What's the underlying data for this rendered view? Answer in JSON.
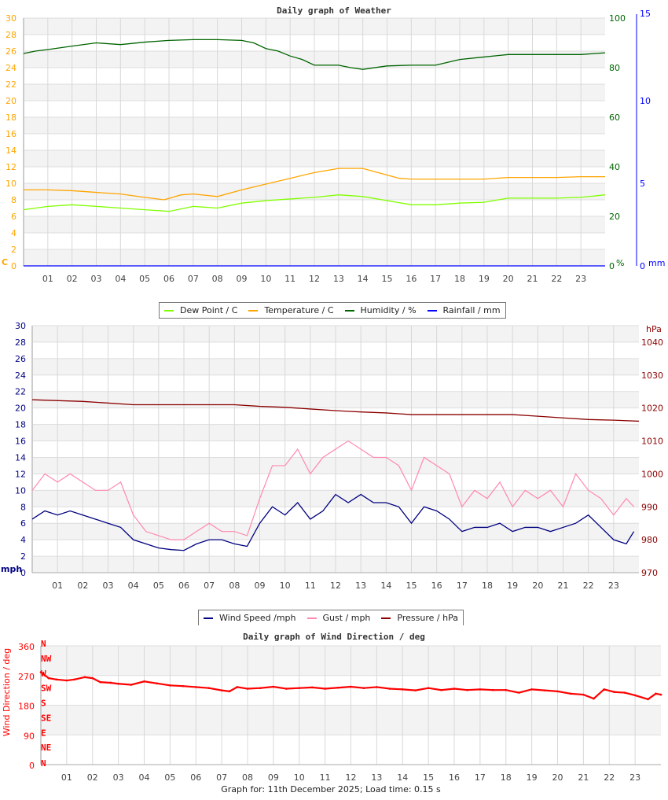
{
  "chart_data": [
    {
      "type": "line",
      "title": "Daily graph of Weather",
      "x_ticks": [
        "01",
        "02",
        "03",
        "04",
        "05",
        "06",
        "07",
        "08",
        "09",
        "10",
        "11",
        "12",
        "13",
        "14",
        "15",
        "16",
        "17",
        "18",
        "19",
        "20",
        "21",
        "22",
        "23"
      ],
      "x_unit": "hour",
      "xlim": [
        0,
        24
      ],
      "axes": {
        "left": {
          "label": "C",
          "ylim": [
            0,
            30
          ],
          "ticks": [
            0,
            2,
            4,
            6,
            8,
            10,
            12,
            14,
            16,
            18,
            20,
            22,
            24,
            26,
            28,
            30
          ],
          "color": "#ffa500"
        },
        "right1": {
          "label": "%",
          "ylim": [
            0,
            100
          ],
          "ticks": [
            0,
            20,
            40,
            60,
            80,
            100
          ],
          "color": "#006400"
        },
        "right2": {
          "label": "mm",
          "ylim": [
            0,
            15
          ],
          "ticks": [
            0,
            5,
            10,
            15
          ],
          "color": "#0000ff"
        }
      },
      "grid": true,
      "legend_position": "bottom",
      "series": [
        {
          "name": "Dew Point / C",
          "axis": "left",
          "color": "#80ff00",
          "x": [
            0,
            1,
            2,
            3,
            4,
            5,
            6,
            7,
            8,
            9,
            10,
            11,
            12,
            13,
            14,
            15,
            16,
            17,
            18,
            19,
            20,
            21,
            22,
            23,
            24
          ],
          "y": [
            6.8,
            7.2,
            7.4,
            7.2,
            7.0,
            6.8,
            6.6,
            7.2,
            7.0,
            7.6,
            7.9,
            8.1,
            8.3,
            8.6,
            8.4,
            7.9,
            7.4,
            7.4,
            7.6,
            7.7,
            8.2,
            8.2,
            8.2,
            8.3,
            8.6
          ]
        },
        {
          "name": "Temperature / C",
          "axis": "left",
          "color": "#ffa500",
          "x": [
            0,
            1,
            2,
            3,
            4,
            5,
            5.8,
            6.5,
            7,
            8,
            9,
            10,
            11,
            12,
            13,
            14,
            15,
            15.5,
            16,
            17,
            18,
            19,
            20,
            21,
            22,
            23,
            24
          ],
          "y": [
            9.2,
            9.2,
            9.1,
            8.9,
            8.7,
            8.3,
            8.0,
            8.6,
            8.7,
            8.4,
            9.2,
            9.9,
            10.6,
            11.3,
            11.8,
            11.8,
            11.0,
            10.6,
            10.5,
            10.5,
            10.5,
            10.5,
            10.7,
            10.7,
            10.7,
            10.8,
            10.8
          ]
        },
        {
          "name": "Humidity / %",
          "axis": "right1",
          "color": "#006400",
          "x": [
            0,
            0.5,
            1,
            2,
            3,
            4,
            5,
            6,
            7,
            8,
            9,
            9.5,
            10,
            10.5,
            11,
            11.5,
            12,
            13,
            13.5,
            14,
            15,
            16,
            17,
            18,
            19,
            20,
            21,
            22,
            23,
            24
          ],
          "y": [
            85.7,
            86.7,
            87.3,
            88.7,
            90,
            89.3,
            90.3,
            91,
            91.3,
            91.3,
            91,
            90,
            87.7,
            86.7,
            84.7,
            83.3,
            81,
            81,
            80,
            79.3,
            80.7,
            81,
            81,
            83.3,
            84.3,
            85.3,
            85.3,
            85.3,
            85.3,
            86
          ]
        },
        {
          "name": "Rainfall / mm",
          "axis": "right2",
          "color": "#0000ff",
          "x": [
            0,
            24
          ],
          "y": [
            0,
            0
          ]
        }
      ]
    },
    {
      "type": "line",
      "title": "",
      "x_ticks": [
        "01",
        "02",
        "03",
        "04",
        "05",
        "06",
        "07",
        "08",
        "09",
        "10",
        "11",
        "12",
        "13",
        "14",
        "15",
        "16",
        "17",
        "18",
        "19",
        "20",
        "21",
        "22",
        "23"
      ],
      "x_unit": "hour",
      "xlim": [
        0,
        24
      ],
      "axes": {
        "left": {
          "label": "mph",
          "ylim": [
            0,
            30
          ],
          "ticks": [
            0,
            2,
            4,
            6,
            8,
            10,
            12,
            14,
            16,
            18,
            20,
            22,
            24,
            26,
            28,
            30
          ],
          "color": "#000080"
        },
        "right": {
          "label": "hPa",
          "ylim": [
            970,
            1045
          ],
          "ticks": [
            970,
            980,
            990,
            1000,
            1010,
            1020,
            1030,
            1040
          ],
          "color": "#8b0000"
        }
      },
      "grid": true,
      "legend_position": "bottom",
      "series": [
        {
          "name": "Wind Speed /mph",
          "axis": "left",
          "color": "#000080",
          "x": [
            0,
            0.5,
            1,
            1.5,
            2,
            2.5,
            3,
            3.5,
            4,
            4.5,
            5,
            5.5,
            6,
            6.5,
            7,
            7.5,
            8,
            8.5,
            9,
            9.5,
            10,
            10.5,
            11,
            11.5,
            12,
            12.5,
            13,
            13.5,
            14,
            14.5,
            15,
            15.5,
            16,
            16.5,
            17,
            17.5,
            18,
            18.5,
            19,
            19.5,
            20,
            20.5,
            21,
            21.5,
            22,
            22.5,
            23,
            23.5,
            23.8
          ],
          "y": [
            6.5,
            7.5,
            7,
            7.5,
            7,
            6.5,
            6,
            5.5,
            4,
            3.5,
            3,
            2.8,
            2.7,
            3.5,
            4,
            4,
            3.5,
            3.2,
            6,
            8,
            7,
            8.5,
            6.5,
            7.5,
            9.5,
            8.5,
            9.5,
            8.5,
            8.5,
            8,
            6,
            8,
            7.5,
            6.5,
            5,
            5.5,
            5.5,
            6,
            5,
            5.5,
            5.5,
            5,
            5.5,
            6,
            7,
            5.5,
            4,
            3.5,
            5
          ]
        },
        {
          "name": "Gust / mph",
          "axis": "left",
          "color": "#ff88b0",
          "x": [
            0,
            0.5,
            1,
            1.5,
            2,
            2.5,
            3,
            3.5,
            4,
            4.5,
            5,
            5.5,
            6,
            6.5,
            7,
            7.5,
            8,
            8.5,
            9,
            9.5,
            10,
            10.5,
            11,
            11.5,
            12,
            12.5,
            13,
            13.5,
            14,
            14.5,
            15,
            15.5,
            16,
            16.5,
            17,
            17.5,
            18,
            18.5,
            19,
            19.5,
            20,
            20.5,
            21,
            21.5,
            22,
            22.5,
            23,
            23.5,
            23.8
          ],
          "y": [
            10,
            12,
            11,
            12,
            11,
            10,
            10,
            11,
            7,
            5,
            4.5,
            4,
            4,
            5,
            6,
            5,
            5,
            4.5,
            9,
            13,
            13,
            15,
            12,
            14,
            15,
            16,
            15,
            14,
            14,
            13,
            10,
            14,
            13,
            12,
            8,
            10,
            9,
            11,
            8,
            10,
            9,
            10,
            8,
            12,
            10,
            9,
            7,
            9,
            8
          ]
        },
        {
          "name": "Pressure / hPa",
          "axis": "right",
          "color": "#8b0000",
          "x": [
            0,
            2,
            4,
            6,
            8,
            9,
            10,
            11,
            12,
            12.5,
            13,
            14,
            15,
            16,
            17,
            18,
            19,
            20,
            21,
            22,
            23,
            24
          ],
          "y": [
            1022.5,
            1022,
            1021,
            1021,
            1021,
            1020.5,
            1020.2,
            1019.7,
            1019.2,
            1019,
            1018.8,
            1018.5,
            1018,
            1018,
            1018,
            1018,
            1018,
            1017.5,
            1017,
            1016.5,
            1016.3,
            1016
          ]
        }
      ]
    },
    {
      "type": "scatter",
      "title": "Daily graph of Wind Direction / deg",
      "ylabel": "Wind Direction / deg",
      "x_ticks": [
        "01",
        "02",
        "03",
        "04",
        "05",
        "06",
        "07",
        "08",
        "09",
        "10",
        "11",
        "12",
        "13",
        "14",
        "15",
        "16",
        "17",
        "18",
        "19",
        "20",
        "21",
        "22",
        "23"
      ],
      "x_unit": "hour",
      "xlim": [
        0,
        24
      ],
      "ylim": [
        0,
        360
      ],
      "y_ticks": [
        0,
        90,
        180,
        270,
        360
      ],
      "compass_labels": [
        "N",
        "NE",
        "E",
        "SE",
        "S",
        "SW",
        "W",
        "NW",
        "N"
      ],
      "color": "#ff0000",
      "grid": true,
      "series": [
        {
          "name": "",
          "x": [
            0,
            0.3,
            0.6,
            1,
            1.3,
            1.7,
            2,
            2.3,
            2.7,
            3,
            3.5,
            4,
            4.5,
            5,
            5.5,
            6,
            6.5,
            7,
            7.3,
            7.6,
            8,
            8.5,
            9,
            9.5,
            10,
            10.5,
            11,
            11.5,
            12,
            12.5,
            13,
            13.5,
            14,
            14.5,
            15,
            15.5,
            16,
            16.5,
            17,
            17.5,
            18,
            18.5,
            19,
            19.5,
            20,
            20.5,
            21,
            21.4,
            21.8,
            22.2,
            22.6,
            23,
            23.5,
            23.8,
            24
          ],
          "y": [
            280,
            262,
            258,
            255,
            258,
            265,
            262,
            250,
            248,
            245,
            242,
            252,
            246,
            240,
            238,
            235,
            232,
            225,
            222,
            235,
            230,
            232,
            236,
            230,
            232,
            234,
            230,
            233,
            236,
            232,
            235,
            230,
            228,
            225,
            232,
            226,
            230,
            226,
            228,
            226,
            226,
            218,
            228,
            225,
            222,
            215,
            212,
            200,
            228,
            220,
            218,
            210,
            198,
            215,
            212
          ]
        }
      ]
    }
  ],
  "legends": {
    "weather": [
      "Dew Point / C",
      "Temperature / C",
      "Humidity / %",
      "Rainfall / mm"
    ],
    "wind": [
      "Wind Speed /mph",
      "Gust / mph",
      "Pressure / hPa"
    ]
  },
  "footer": "Graph for: 11th December 2025; Load time: 0.15 s"
}
